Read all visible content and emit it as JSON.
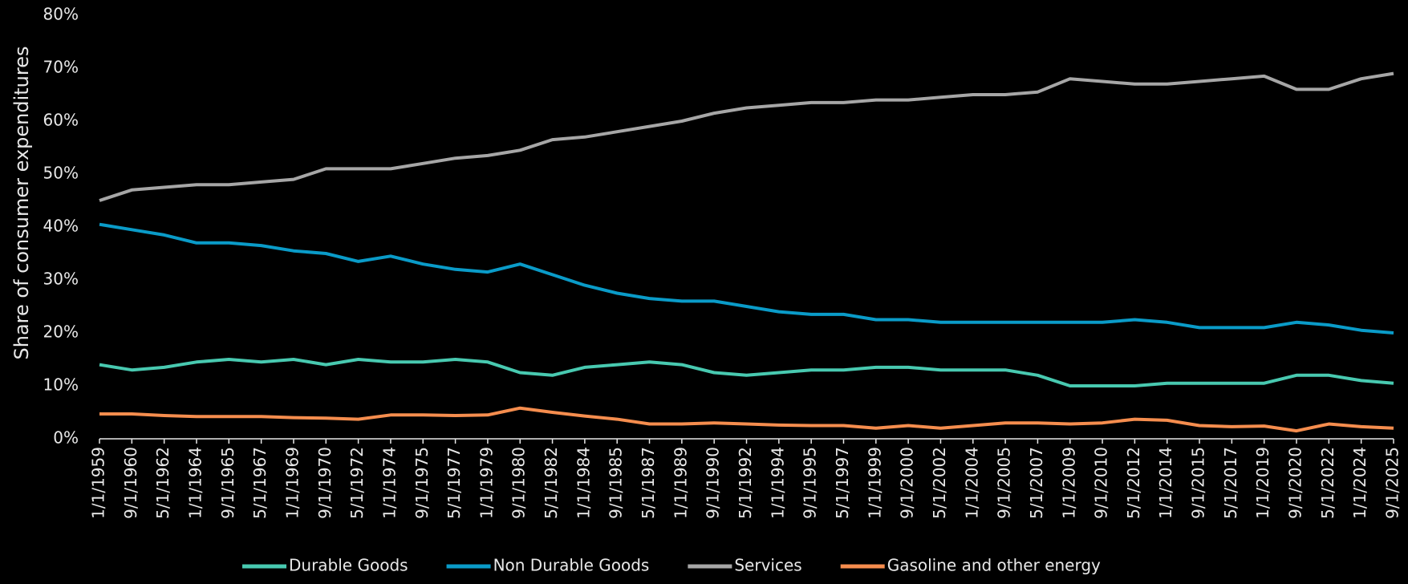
{
  "chart_data": {
    "type": "line",
    "ylabel": "Share of consumer expenditures",
    "categories": [
      "1/1/1959",
      "9/1/1960",
      "5/1/1962",
      "1/1/1964",
      "9/1/1965",
      "5/1/1967",
      "1/1/1969",
      "9/1/1970",
      "5/1/1972",
      "1/1/1974",
      "9/1/1975",
      "5/1/1977",
      "1/1/1979",
      "9/1/1980",
      "5/1/1982",
      "1/1/1984",
      "9/1/1985",
      "5/1/1987",
      "1/1/1989",
      "9/1/1990",
      "5/1/1992",
      "1/1/1994",
      "9/1/1995",
      "5/1/1997",
      "1/1/1999",
      "9/1/2000",
      "5/1/2002",
      "1/1/2004",
      "9/1/2005",
      "5/1/2007",
      "1/1/2009",
      "9/1/2010",
      "5/1/2012",
      "1/1/2014",
      "9/1/2015",
      "5/1/2017",
      "1/1/2019",
      "9/1/2020",
      "5/1/2022",
      "1/1/2024",
      "9/1/2025"
    ],
    "series": [
      {
        "name": "Durable Goods",
        "color": "#48c9b0",
        "values": [
          14,
          13,
          13.5,
          14.5,
          15,
          14.5,
          15,
          14,
          15,
          14.5,
          14.5,
          15,
          14.5,
          12.5,
          12,
          13.5,
          14,
          14.5,
          14,
          12.5,
          12,
          12.5,
          13,
          13,
          13.5,
          13.5,
          13,
          13,
          13,
          12,
          10,
          10,
          10,
          10.5,
          10.5,
          10.5,
          10.5,
          12,
          12,
          11,
          10.5
        ]
      },
      {
        "name": "Non Durable Goods",
        "color": "#0a9bc8",
        "values": [
          40.5,
          39.5,
          38.5,
          37,
          37,
          36.5,
          35.5,
          35,
          33.5,
          34.5,
          33,
          32,
          31.5,
          33,
          31,
          29,
          27.5,
          26.5,
          26,
          26,
          25,
          24,
          23.5,
          23.5,
          22.5,
          22.5,
          22,
          22,
          22,
          22,
          22,
          22,
          22.5,
          22,
          21,
          21,
          21,
          22,
          21.5,
          20.5,
          20
        ]
      },
      {
        "name": "Services",
        "color": "#a6a6a6",
        "values": [
          45,
          47,
          47.5,
          48,
          48,
          48.5,
          49,
          51,
          51,
          51,
          52,
          53,
          53.5,
          54.5,
          56.5,
          57,
          58,
          59,
          60,
          61.5,
          62.5,
          63,
          63.5,
          63.5,
          64,
          64,
          64.5,
          65,
          65,
          65.5,
          68,
          67.5,
          67,
          67,
          67.5,
          68,
          68.5,
          66,
          66,
          68,
          69
        ]
      },
      {
        "name": "Gasoline and other energy",
        "color": "#f58d4e",
        "values": [
          4.7,
          4.7,
          4.4,
          4.2,
          4.2,
          4.2,
          4,
          3.9,
          3.7,
          4.5,
          4.5,
          4.4,
          4.5,
          5.8,
          5,
          4.3,
          3.7,
          2.8,
          2.8,
          3,
          2.8,
          2.6,
          2.5,
          2.5,
          2,
          2.5,
          2,
          2.5,
          3,
          3,
          2.8,
          3,
          3.7,
          3.5,
          2.5,
          2.3,
          2.4,
          1.5,
          2.8,
          2.3,
          2
        ]
      }
    ],
    "ylim": [
      0,
      80
    ],
    "yticks": [
      {
        "value": 0,
        "label": "0%"
      },
      {
        "value": 10,
        "label": "10%"
      },
      {
        "value": 20,
        "label": "20%"
      },
      {
        "value": 30,
        "label": "30%"
      },
      {
        "value": 40,
        "label": "40%"
      },
      {
        "value": 50,
        "label": "50%"
      },
      {
        "value": 60,
        "label": "60%"
      },
      {
        "value": 70,
        "label": "70%"
      },
      {
        "value": 80,
        "label": "80%"
      }
    ],
    "grid": false,
    "legend": "bottom"
  }
}
